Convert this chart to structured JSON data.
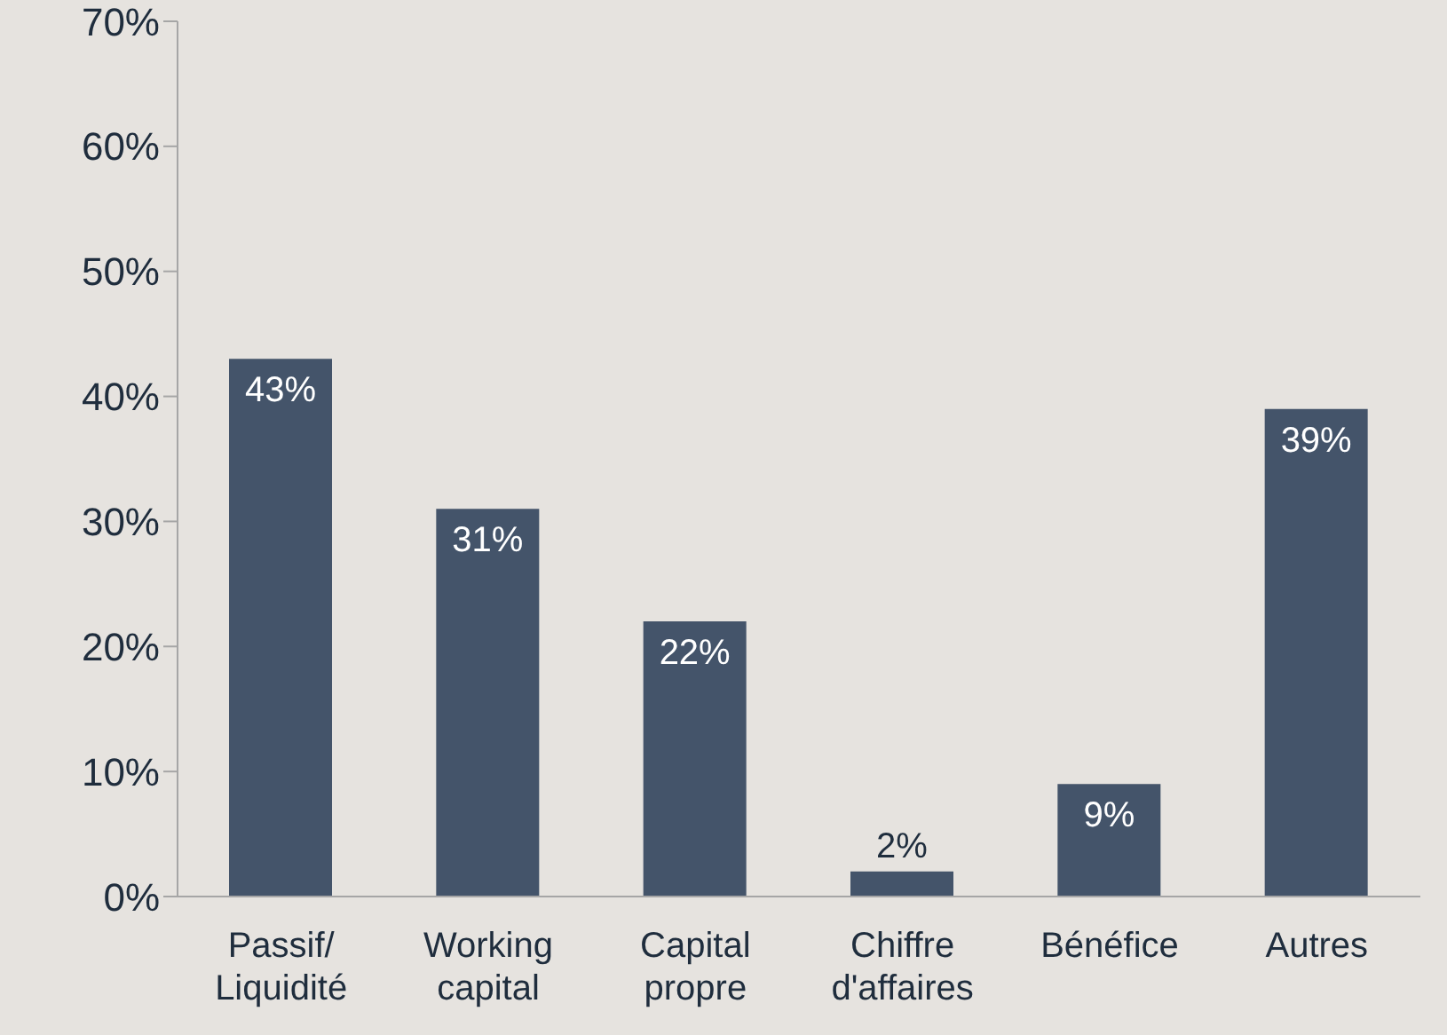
{
  "chart_data": {
    "type": "bar",
    "categories": [
      "Passif/ Liquidité",
      "Working capital",
      "Capital propre",
      "Chiffre d'affaires",
      "Bénéfice",
      "Autres"
    ],
    "values": [
      43,
      31,
      22,
      2,
      9,
      39
    ],
    "value_labels": [
      "43%",
      "31%",
      "22%",
      "2%",
      "9%",
      "39%"
    ],
    "color": "#44546a",
    "ylim": [
      0,
      70
    ],
    "yticks": [
      {
        "value": 0,
        "label": "0%"
      },
      {
        "value": 10,
        "label": "10%"
      },
      {
        "value": 20,
        "label": "20%"
      },
      {
        "value": 30,
        "label": "30%"
      },
      {
        "value": 40,
        "label": "40%"
      },
      {
        "value": 50,
        "label": "50%"
      },
      {
        "value": 60,
        "label": "60%"
      },
      {
        "value": 70,
        "label": "70%"
      }
    ],
    "grid": false,
    "legend": false
  }
}
